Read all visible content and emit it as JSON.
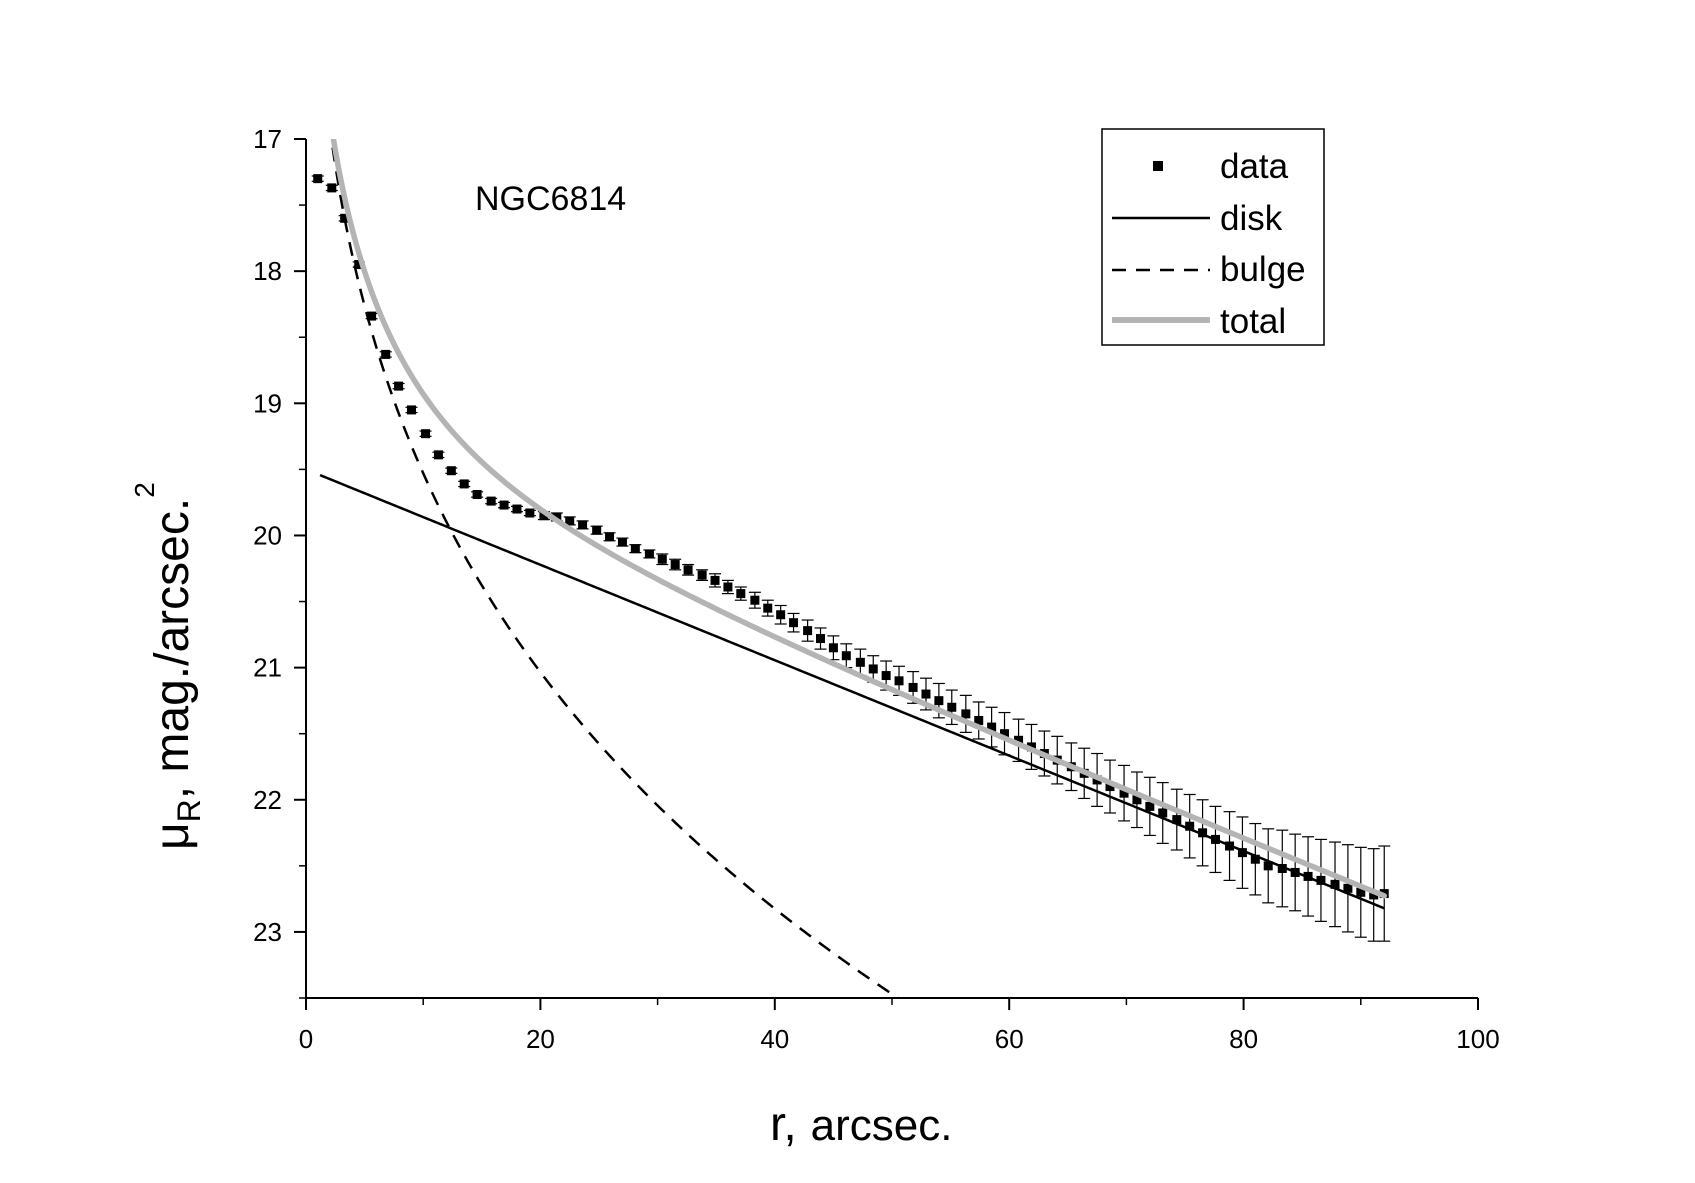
{
  "chart_data": {
    "type": "scatter",
    "title": "",
    "annotation": "NGC6814",
    "xlabel": {
      "main": "r,",
      "unit": "arcsec."
    },
    "ylabel": {
      "symbol": "μ",
      "sub": "R",
      "rest": ", mag./arcsec.",
      "sup": "2"
    },
    "xlim": [
      0,
      100
    ],
    "ylim": [
      23.5,
      17
    ],
    "y_inverted": true,
    "xticks": [
      0,
      20,
      40,
      60,
      80,
      100
    ],
    "yticks": [
      17,
      18,
      19,
      20,
      21,
      22,
      23
    ],
    "grid": false,
    "legend": {
      "position": "top-right",
      "entries": [
        {
          "label": "data",
          "style": "marker"
        },
        {
          "label": "disk",
          "style": "solid",
          "color": "#000000"
        },
        {
          "label": "bulge",
          "style": "dashed",
          "color": "#000000"
        },
        {
          "label": "total",
          "style": "solid-thick",
          "color": "#b4b4b4"
        }
      ]
    },
    "models": {
      "disk": {
        "mu0": 19.5,
        "slope": 0.0361,
        "x_from": 1.2,
        "x_to": 92
      },
      "bulge": {
        "mu_e": 19.9,
        "r_e": 12.0,
        "x_from": 1.5,
        "x_to": 55
      },
      "total": {
        "x_from": 1.3,
        "x_to": 92
      }
    },
    "series": [
      {
        "name": "data",
        "x": [
          1.0,
          2.2,
          3.3,
          4.5,
          5.6,
          6.8,
          7.9,
          9.0,
          10.2,
          11.3,
          12.4,
          13.5,
          14.6,
          15.8,
          16.9,
          18.0,
          19.1,
          20.3,
          21.4,
          22.5,
          23.6,
          24.8,
          25.9,
          27.0,
          28.1,
          29.3,
          30.4,
          31.5,
          32.6,
          33.8,
          34.9,
          36.0,
          37.1,
          38.3,
          39.4,
          40.5,
          41.6,
          42.8,
          43.9,
          45.0,
          46.1,
          47.3,
          48.4,
          49.5,
          50.6,
          51.8,
          52.9,
          54.0,
          55.1,
          56.3,
          57.4,
          58.5,
          59.6,
          60.8,
          61.9,
          63.0,
          64.1,
          65.3,
          66.4,
          67.5,
          68.6,
          69.8,
          70.9,
          72.0,
          73.1,
          74.3,
          75.4,
          76.5,
          77.6,
          78.8,
          79.9,
          81.0,
          82.1,
          83.3,
          84.4,
          85.5,
          86.6,
          87.8,
          88.9,
          90.0,
          91.1,
          92.0
        ],
        "y": [
          17.3,
          17.37,
          17.6,
          17.95,
          18.34,
          18.63,
          18.87,
          19.05,
          19.23,
          19.39,
          19.51,
          19.61,
          19.69,
          19.74,
          19.77,
          19.8,
          19.83,
          19.85,
          19.86,
          19.89,
          19.92,
          19.96,
          20.01,
          20.05,
          20.1,
          20.14,
          20.18,
          20.22,
          20.26,
          20.3,
          20.34,
          20.39,
          20.44,
          20.49,
          20.55,
          20.6,
          20.66,
          20.72,
          20.78,
          20.85,
          20.91,
          20.96,
          21.01,
          21.06,
          21.1,
          21.15,
          21.2,
          21.25,
          21.3,
          21.35,
          21.4,
          21.45,
          21.5,
          21.55,
          21.6,
          21.65,
          21.7,
          21.75,
          21.8,
          21.85,
          21.9,
          21.95,
          22.0,
          22.05,
          22.1,
          22.15,
          22.2,
          22.25,
          22.3,
          22.35,
          22.4,
          22.45,
          22.5,
          22.52,
          22.55,
          22.58,
          22.61,
          22.64,
          22.67,
          22.7,
          22.72,
          22.71
        ],
        "err": [
          0.02,
          0.02,
          0.02,
          0.02,
          0.02,
          0.02,
          0.02,
          0.02,
          0.02,
          0.02,
          0.02,
          0.02,
          0.02,
          0.02,
          0.02,
          0.02,
          0.02,
          0.03,
          0.03,
          0.03,
          0.03,
          0.03,
          0.03,
          0.03,
          0.03,
          0.03,
          0.04,
          0.04,
          0.04,
          0.04,
          0.05,
          0.05,
          0.05,
          0.06,
          0.06,
          0.07,
          0.07,
          0.08,
          0.08,
          0.09,
          0.09,
          0.1,
          0.1,
          0.11,
          0.11,
          0.12,
          0.12,
          0.13,
          0.13,
          0.14,
          0.14,
          0.15,
          0.16,
          0.16,
          0.17,
          0.17,
          0.18,
          0.18,
          0.19,
          0.2,
          0.2,
          0.21,
          0.21,
          0.22,
          0.23,
          0.23,
          0.24,
          0.25,
          0.25,
          0.26,
          0.27,
          0.27,
          0.28,
          0.29,
          0.29,
          0.3,
          0.31,
          0.32,
          0.33,
          0.34,
          0.35,
          0.36
        ]
      }
    ]
  }
}
